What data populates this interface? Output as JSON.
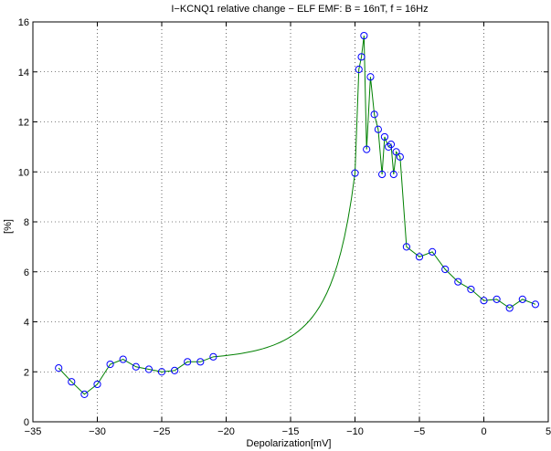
{
  "chart_data": {
    "type": "line",
    "title": "I−KCNQ1 relative change − ELF EMF: B = 16nT, f = 16Hz",
    "xlabel": "Depolarization[mV]",
    "ylabel": "[%]",
    "xlim": [
      -35,
      5
    ],
    "ylim": [
      0,
      16
    ],
    "xticks": [
      -35,
      -30,
      -25,
      -20,
      -15,
      -10,
      -5,
      0,
      5
    ],
    "yticks": [
      0,
      2,
      4,
      6,
      8,
      10,
      12,
      14,
      16
    ],
    "grid": true,
    "colors": {
      "line": "#008000",
      "marker": "#0000ff"
    },
    "series": [
      {
        "markers": [
          [
            -33,
            2.15
          ],
          [
            -32,
            1.6
          ],
          [
            -31,
            1.1
          ],
          [
            -30,
            1.5
          ],
          [
            -29,
            2.3
          ],
          [
            -28,
            2.5
          ],
          [
            -27,
            2.2
          ],
          [
            -26,
            2.1
          ],
          [
            -25,
            2.0
          ],
          [
            -24,
            2.05
          ],
          [
            -23,
            2.4
          ],
          [
            -22,
            2.4
          ],
          [
            -21,
            2.6
          ],
          [
            -10,
            9.95
          ],
          [
            -9.7,
            14.1
          ],
          [
            -9.5,
            14.6
          ],
          [
            -9.3,
            15.45
          ],
          [
            -9.1,
            10.9
          ],
          [
            -8.8,
            13.8
          ],
          [
            -8.5,
            12.3
          ],
          [
            -8.2,
            11.7
          ],
          [
            -7.9,
            9.9
          ],
          [
            -7.7,
            11.4
          ],
          [
            -7.4,
            11.0
          ],
          [
            -7.2,
            11.1
          ],
          [
            -7.0,
            9.9
          ],
          [
            -6.8,
            10.8
          ],
          [
            -6.5,
            10.6
          ],
          [
            -6.0,
            7.0
          ],
          [
            -5.0,
            6.6
          ],
          [
            -4.0,
            6.8
          ],
          [
            -3.0,
            6.1
          ],
          [
            -2.0,
            5.6
          ],
          [
            -1.0,
            5.3
          ],
          [
            0,
            4.85
          ],
          [
            1,
            4.9
          ],
          [
            2,
            4.55
          ],
          [
            3,
            4.9
          ],
          [
            4,
            4.7
          ]
        ]
      }
    ]
  }
}
